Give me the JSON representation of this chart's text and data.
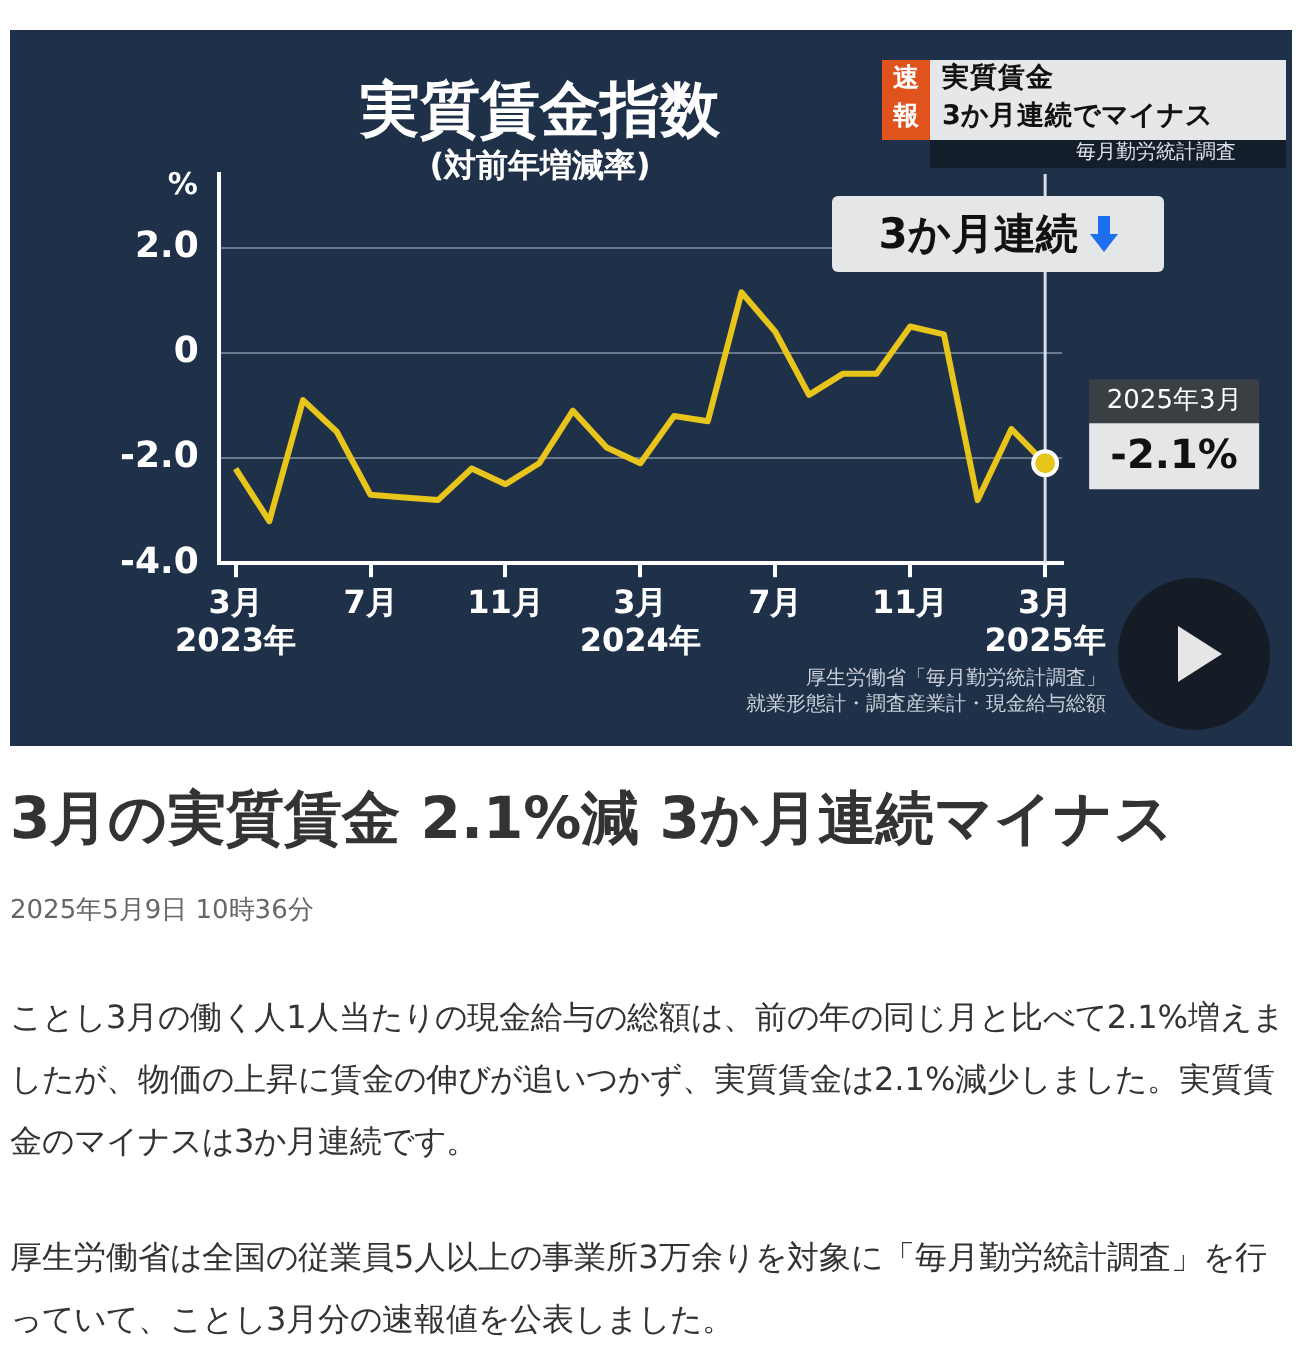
{
  "chart_data": {
    "type": "line",
    "title": "実質賃金指数",
    "subtitle": "(対前年増減率)",
    "ylabel": "%",
    "categories": [
      "3月\n2023年",
      null,
      null,
      null,
      "7月",
      null,
      null,
      null,
      "11月",
      null,
      null,
      null,
      "3月\n2024年",
      null,
      null,
      null,
      "7月",
      null,
      null,
      null,
      "11月",
      null,
      null,
      null,
      "3月\n2025年"
    ],
    "series": [
      {
        "color": "#e8c51a",
        "values": [
          -2.2,
          -3.2,
          -0.9,
          -1.5,
          -2.7,
          -2.75,
          -2.8,
          -2.2,
          -2.5,
          -2.1,
          -1.1,
          -1.8,
          -2.1,
          -1.2,
          -1.3,
          1.15,
          0.4,
          -0.8,
          -0.4,
          -0.4,
          0.5,
          0.35,
          -2.8,
          -1.45,
          -2.1
        ]
      }
    ],
    "ylim": [
      -4,
      3.4
    ],
    "yticks": [
      {
        "value": 2,
        "label": "2.0"
      },
      0,
      {
        "value": -2,
        "label": "-2.0"
      },
      {
        "value": -4,
        "label": "-4.0"
      }
    ],
    "grid": "y",
    "legend": false,
    "marker": "none",
    "line_style": "solid",
    "ref_lines": [
      {
        "axis": "x",
        "value": "3月\n2025年",
        "color": "#d8dde6"
      }
    ],
    "annotations": [
      "速報",
      "実質賃金\n3か月連続でマイナス",
      "毎月勤労統計調査",
      "3か月連続",
      {
        "text": "2025年3月\n-2.1%",
        "x": "3月\n2025年",
        "y": -2.1
      },
      "厚生労働省「毎月勤労統計調査」",
      "就業形態計・調査産業計・現金給与総額",
      "3月の実質賃金 2.1%減 3か月連続マイナス",
      "2025年5月9日 10時36分",
      "ことし3月の働く人1人当たりの現金給与の総額は、前の年の同じ月と比べて2.1%増えましたが、物価の上昇に賃金の伸びが追いつかず、実質賃金は2.1%減少しました。実質賃金のマイナスは3か月連続です。",
      "厚生労働省は全国の従業員5人以上の事業所3万余りを対象に「毎月勤労統計調査」を行っていて、ことし3月分の速報値を公表しました。"
    ]
  }
}
